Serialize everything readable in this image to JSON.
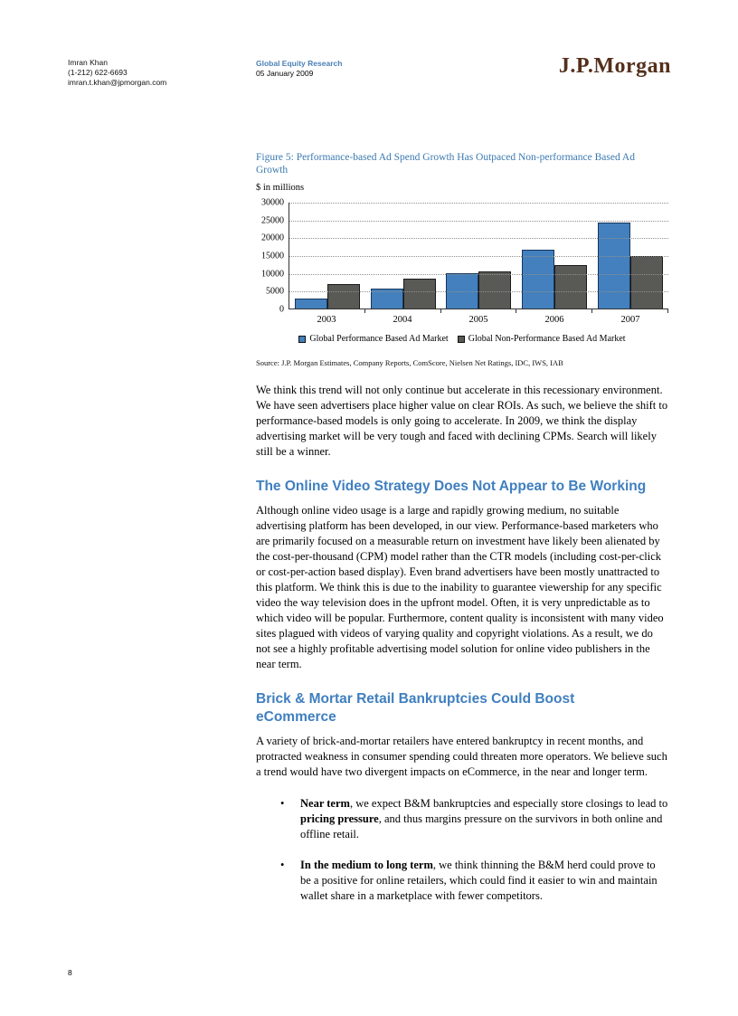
{
  "header": {
    "analyst_name": "Imran Khan",
    "analyst_phone": "(1-212) 622-6693",
    "analyst_email": "imran.t.khan@jpmorgan.com",
    "division": "Global Equity Research",
    "date": "05 January 2009",
    "logo_text": "J.P.Morgan"
  },
  "figure": {
    "caption": "Figure 5: Performance-based Ad Spend Growth Has Outpaced Non-performance Based Ad Growth",
    "units": "$ in millions",
    "source": "Source: J.P. Morgan Estimates, Company Reports, ComScore, Nielsen Net Ratings, IDC, IWS, IAB"
  },
  "chart_data": {
    "type": "bar",
    "categories": [
      "2003",
      "2004",
      "2005",
      "2006",
      "2007"
    ],
    "series": [
      {
        "name": "Global Performance Based Ad Market",
        "values": [
          2800,
          5500,
          9800,
          16500,
          24200
        ],
        "fill": "#4380bd",
        "border": "#17365d"
      },
      {
        "name": "Global Non-Performance Based Ad Market",
        "values": [
          6800,
          8500,
          10400,
          12200,
          14800
        ],
        "fill": "#595955",
        "border": "#1a1a1a"
      }
    ],
    "title": "Performance-based Ad Spend Growth Has Outpaced Non-performance Based Ad Growth",
    "xlabel": "",
    "ylabel": "$ in millions",
    "ylim": [
      0,
      30000
    ],
    "ytick_interval": 5000,
    "ytick_labels": [
      "0",
      "5000",
      "10000",
      "15000",
      "20000",
      "25000",
      "30000"
    ],
    "grid": "horizontal-dotted",
    "legend_position": "bottom"
  },
  "body": {
    "para1": "We think this trend will not only continue but accelerate in this recessionary environment. We have seen advertisers place higher value on clear ROIs. As such, we believe the shift to performance-based models is only going to accelerate. In 2009, we think the display advertising market will be very tough and faced with declining CPMs. Search will likely still be a winner.",
    "section1": {
      "heading": "The Online Video Strategy Does Not Appear to Be Working",
      "para": "Although online video usage is a large and rapidly growing medium, no suitable advertising platform has been developed, in our view. Performance-based marketers who are primarily focused on a measurable return on investment have likely been alienated by the cost-per-thousand (CPM) model rather than the CTR models (including cost-per-click or cost-per-action based display). Even brand advertisers have been mostly unattracted to this platform. We think this is due to the inability to guarantee viewership for any specific video the way television does in the upfront model. Often, it is very unpredictable as to which video will be popular. Furthermore, content quality is inconsistent with many video sites plagued with videos of varying quality and copyright violations. As a result, we do not see a highly profitable advertising model solution for online video publishers in the near term."
    },
    "section2": {
      "heading": "Brick & Mortar Retail Bankruptcies Could Boost eCommerce",
      "para": "A variety of brick-and-mortar retailers have entered bankruptcy in recent months, and protracted weakness in consumer spending could threaten more operators. We believe such a trend would have two divergent impacts on eCommerce, in the near and longer term.",
      "bullets": [
        {
          "marker": "•",
          "parts": [
            {
              "text": "Near term",
              "bold": true
            },
            {
              "text": ", we expect B&M bankruptcies and especially store closings to lead to ",
              "bold": false
            },
            {
              "text": "pricing pressure",
              "bold": true
            },
            {
              "text": ", and thus margins pressure on the survivors in both online and offline retail.",
              "bold": false
            }
          ]
        },
        {
          "marker": "•",
          "parts": [
            {
              "text": "In the medium to long term",
              "bold": true
            },
            {
              "text": ", we think thinning the B&M herd could prove to be a positive for online retailers, which could find it easier to win and maintain wallet share in a marketplace with fewer competitors.",
              "bold": false
            }
          ]
        }
      ]
    }
  },
  "page": {
    "number": "8"
  },
  "colors": {
    "heading_blue": "#3f7fbf",
    "caption_blue": "#3b79b0",
    "research_blue": "#4a7fb5",
    "logo_brown": "#54301c",
    "performance_bar": "#4380bd",
    "non_performance_bar": "#595955"
  }
}
